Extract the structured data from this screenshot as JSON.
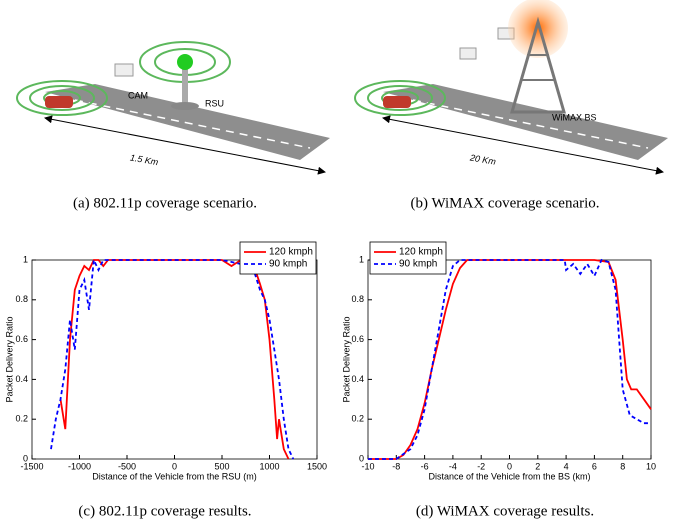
{
  "panels": [
    {
      "labels": [
        "CAM",
        "RSU",
        "1.5 Km"
      ]
    },
    {
      "labels": [
        "WiMAX BS",
        "20 Km"
      ]
    }
  ],
  "captions": [
    "(a) 802.11p coverage scenario.",
    "(b) WiMAX coverage scenario.",
    "(c) 802.11p coverage results.",
    "(d) WiMAX coverage results."
  ],
  "chart_data": [
    {
      "type": "line",
      "xlabel": "Distance of the Vehicle from the RSU (m)",
      "ylabel": "Packet Delivery Ratio",
      "xlim": [
        -1500,
        1500
      ],
      "xticks": [
        -1500,
        -1000,
        -500,
        0,
        500,
        1000,
        1500
      ],
      "ylim": [
        0,
        1
      ],
      "yticks": [
        0,
        0.2,
        0.4,
        0.6,
        0.8,
        1
      ],
      "legend": "upper right",
      "series": [
        {
          "name": "120 kmph",
          "color": "#ff0000",
          "linestyle": "solid",
          "x": [
            -1200,
            -1150,
            -1100,
            -1050,
            -1000,
            -950,
            -900,
            -850,
            -800,
            -750,
            -700,
            -500,
            0,
            500,
            600,
            700,
            800,
            850,
            900,
            950,
            1000,
            1050,
            1080,
            1100,
            1150,
            1200
          ],
          "values": [
            0.3,
            0.15,
            0.6,
            0.85,
            0.92,
            0.97,
            0.95,
            1,
            1,
            0.97,
            1,
            1,
            1,
            1,
            0.97,
            1,
            0.98,
            0.95,
            0.88,
            0.8,
            0.6,
            0.3,
            0.1,
            0.2,
            0.05,
            0
          ]
        },
        {
          "name": "90 kmph",
          "color": "#0000ff",
          "linestyle": "dashed",
          "x": [
            -1300,
            -1250,
            -1200,
            -1150,
            -1100,
            -1050,
            -1000,
            -950,
            -900,
            -850,
            -800,
            -750,
            0,
            500,
            700,
            800,
            900,
            950,
            1000,
            1050,
            1100,
            1150,
            1200,
            1250
          ],
          "values": [
            0.05,
            0.2,
            0.3,
            0.45,
            0.7,
            0.55,
            0.85,
            0.9,
            0.75,
            1,
            0.95,
            1,
            1,
            1,
            0.98,
            1,
            0.85,
            0.8,
            0.7,
            0.55,
            0.4,
            0.2,
            0.05,
            0
          ]
        }
      ]
    },
    {
      "type": "line",
      "xlabel": "Distance of the Vehicle from the BS (km)",
      "ylabel": "Packet Delivery Ratio",
      "xlim": [
        -10,
        10
      ],
      "xticks": [
        -10,
        -8,
        -6,
        -4,
        -2,
        0,
        2,
        4,
        6,
        8,
        10
      ],
      "ylim": [
        0,
        1
      ],
      "yticks": [
        0,
        0.2,
        0.4,
        0.6,
        0.8,
        1
      ],
      "legend": "upper left",
      "series": [
        {
          "name": "120 kmph",
          "color": "#ff0000",
          "linestyle": "solid",
          "x": [
            -10,
            -8,
            -7.5,
            -7,
            -6.5,
            -6,
            -5.5,
            -5,
            -4.5,
            -4,
            -3.5,
            -3,
            0,
            6,
            7,
            7.5,
            8,
            8.3,
            8.6,
            9,
            9.5,
            10
          ],
          "values": [
            0,
            0,
            0.02,
            0.07,
            0.15,
            0.28,
            0.45,
            0.6,
            0.75,
            0.88,
            0.96,
            1,
            1,
            1,
            0.99,
            0.9,
            0.6,
            0.4,
            0.35,
            0.35,
            0.3,
            0.25
          ]
        },
        {
          "name": "90 kmph",
          "color": "#0000ff",
          "linestyle": "dashed",
          "x": [
            -10,
            -8,
            -7,
            -6.5,
            -6,
            -5.5,
            -5,
            -4.5,
            -4,
            -3.5,
            0,
            3.9,
            4,
            4.5,
            5,
            5.5,
            6,
            6.5,
            7,
            7.5,
            8,
            8.5,
            9,
            9.5,
            10
          ],
          "values": [
            0,
            0,
            0.05,
            0.12,
            0.25,
            0.45,
            0.65,
            0.85,
            0.97,
            1,
            1,
            1,
            0.95,
            0.98,
            0.93,
            0.98,
            0.92,
            1,
            0.99,
            0.85,
            0.35,
            0.22,
            0.2,
            0.18,
            0.18
          ]
        }
      ]
    }
  ]
}
